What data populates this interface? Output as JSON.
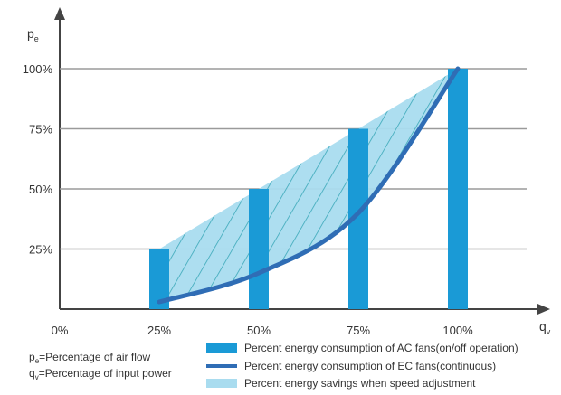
{
  "chart_data": {
    "type": "bar",
    "categories": [
      "0%",
      "25%",
      "50%",
      "75%",
      "100%"
    ],
    "x_values": [
      0,
      25,
      50,
      75,
      100
    ],
    "y_ticks": [
      "25%",
      "50%",
      "75%",
      "100%"
    ],
    "ylim": [
      0,
      100
    ],
    "xlim": [
      0,
      100
    ],
    "grid": true,
    "y_axis_label_main": "p",
    "y_axis_label_sub": "e",
    "x_axis_label_main": "q",
    "x_axis_label_sub": "v",
    "series": [
      {
        "name": "Percent energy consumption of AC fans(on/off operation)",
        "type": "bar",
        "x": [
          25,
          50,
          75,
          100
        ],
        "values": [
          25,
          50,
          75,
          100
        ]
      },
      {
        "name": "Percent energy consumption of EC fans(continuous)",
        "type": "line",
        "x": [
          25,
          50,
          75,
          100
        ],
        "values": [
          3,
          15,
          40,
          100
        ]
      },
      {
        "name": "Percent energy savings when speed adjustment",
        "type": "area",
        "x": [
          25,
          50,
          75,
          100
        ],
        "upper": [
          25,
          50,
          75,
          100
        ],
        "lower": [
          3,
          15,
          40,
          100
        ]
      }
    ],
    "notes": [
      {
        "main": "p",
        "sub": "e",
        "text": "=Percentage of air flow"
      },
      {
        "main": "q",
        "sub": "v",
        "text": "=Percentage of input power"
      }
    ],
    "legend_position": "bottom"
  },
  "colors": {
    "bar": "#1a9ad6",
    "curve": "#2f6db5",
    "area": "#a9dcef",
    "hatch": "#3aa8b8",
    "grid": "#9a9a9a",
    "axis": "#444444",
    "text": "#333333"
  }
}
